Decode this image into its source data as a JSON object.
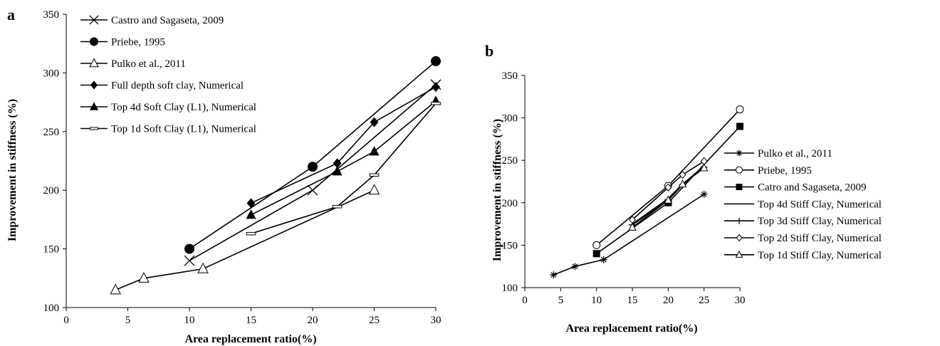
{
  "chart_data": [
    {
      "panel": "a",
      "type": "line",
      "xlabel": "Area replacement ratio(%)",
      "ylabel": "Improvement in stiffness (%)",
      "xlim": [
        0,
        30
      ],
      "ylim": [
        100,
        350
      ],
      "xticks": [
        "0",
        "5",
        "10",
        "15",
        "20",
        "25",
        "30"
      ],
      "yticks": [
        "100",
        "150",
        "200",
        "250",
        "300",
        "350"
      ],
      "grid": false,
      "legend_position": "top-left",
      "series": [
        {
          "name": "Castro and Sagaseta, 2009",
          "marker": "x",
          "x": [
            10,
            20,
            30
          ],
          "y": [
            140,
            200,
            290
          ]
        },
        {
          "name": "Priebe, 1995",
          "marker": "circle-filled",
          "x": [
            10,
            20,
            30
          ],
          "y": [
            150,
            220,
            310
          ]
        },
        {
          "name": "Pulko et al., 2011",
          "marker": "triangle-open",
          "x": [
            4,
            6.3,
            11.1,
            25
          ],
          "y": [
            115,
            125,
            133,
            200
          ]
        },
        {
          "name": "Full depth soft clay, Numerical",
          "marker": "diamond-filled",
          "x": [
            15,
            22,
            25,
            30
          ],
          "y": [
            189,
            223,
            258,
            288
          ]
        },
        {
          "name": "Top 4d Soft Clay (L1), Numerical",
          "marker": "triangle-filled",
          "x": [
            15,
            22,
            25,
            30
          ],
          "y": [
            179,
            216,
            233,
            276
          ]
        },
        {
          "name": "Top 1d Soft Clay (L1), Numerical",
          "marker": "dash",
          "x": [
            15,
            22,
            25,
            30
          ],
          "y": [
            163,
            186,
            213,
            274
          ]
        }
      ]
    },
    {
      "panel": "b",
      "type": "line",
      "xlabel": "Area replacement ratio(%)",
      "ylabel": "Improvement in stiffness (%)",
      "xlim": [
        0,
        30
      ],
      "ylim": [
        100,
        350
      ],
      "xticks": [
        "0",
        "5",
        "10",
        "15",
        "20",
        "25",
        "30"
      ],
      "yticks": [
        "100",
        "150",
        "200",
        "250",
        "300",
        "350"
      ],
      "grid": false,
      "legend_position": "right",
      "series": [
        {
          "name": "Pulko et al., 2011",
          "marker": "asterisk",
          "x": [
            4,
            7,
            11,
            25
          ],
          "y": [
            115,
            125,
            133,
            210
          ]
        },
        {
          "name": "Priebe, 1995",
          "marker": "circle-open",
          "x": [
            10,
            20,
            30
          ],
          "y": [
            150,
            220,
            310
          ]
        },
        {
          "name": "Catro and Sagaseta, 2009",
          "marker": "square-filled",
          "x": [
            10,
            20,
            30
          ],
          "y": [
            140,
            200,
            290
          ]
        },
        {
          "name": "Top 4d Stiff Clay, Numerical",
          "marker": "none",
          "x": [
            15,
            20,
            22,
            25
          ],
          "y": [
            175,
            205,
            222,
            243
          ]
        },
        {
          "name": "Top 3d Stiff Clay, Numerical",
          "marker": "plus",
          "x": [
            15,
            20,
            22,
            25
          ],
          "y": [
            174,
            203,
            221,
            242
          ]
        },
        {
          "name": "Top 2d Stiff Clay, Numerical",
          "marker": "diamond-open",
          "x": [
            15,
            20,
            22,
            25
          ],
          "y": [
            180,
            218,
            233,
            249
          ]
        },
        {
          "name": "Top 1d Stiff Clay, Numerical",
          "marker": "triangle-open",
          "x": [
            15,
            20,
            22,
            25
          ],
          "y": [
            171,
            203,
            222,
            241
          ]
        }
      ]
    }
  ]
}
